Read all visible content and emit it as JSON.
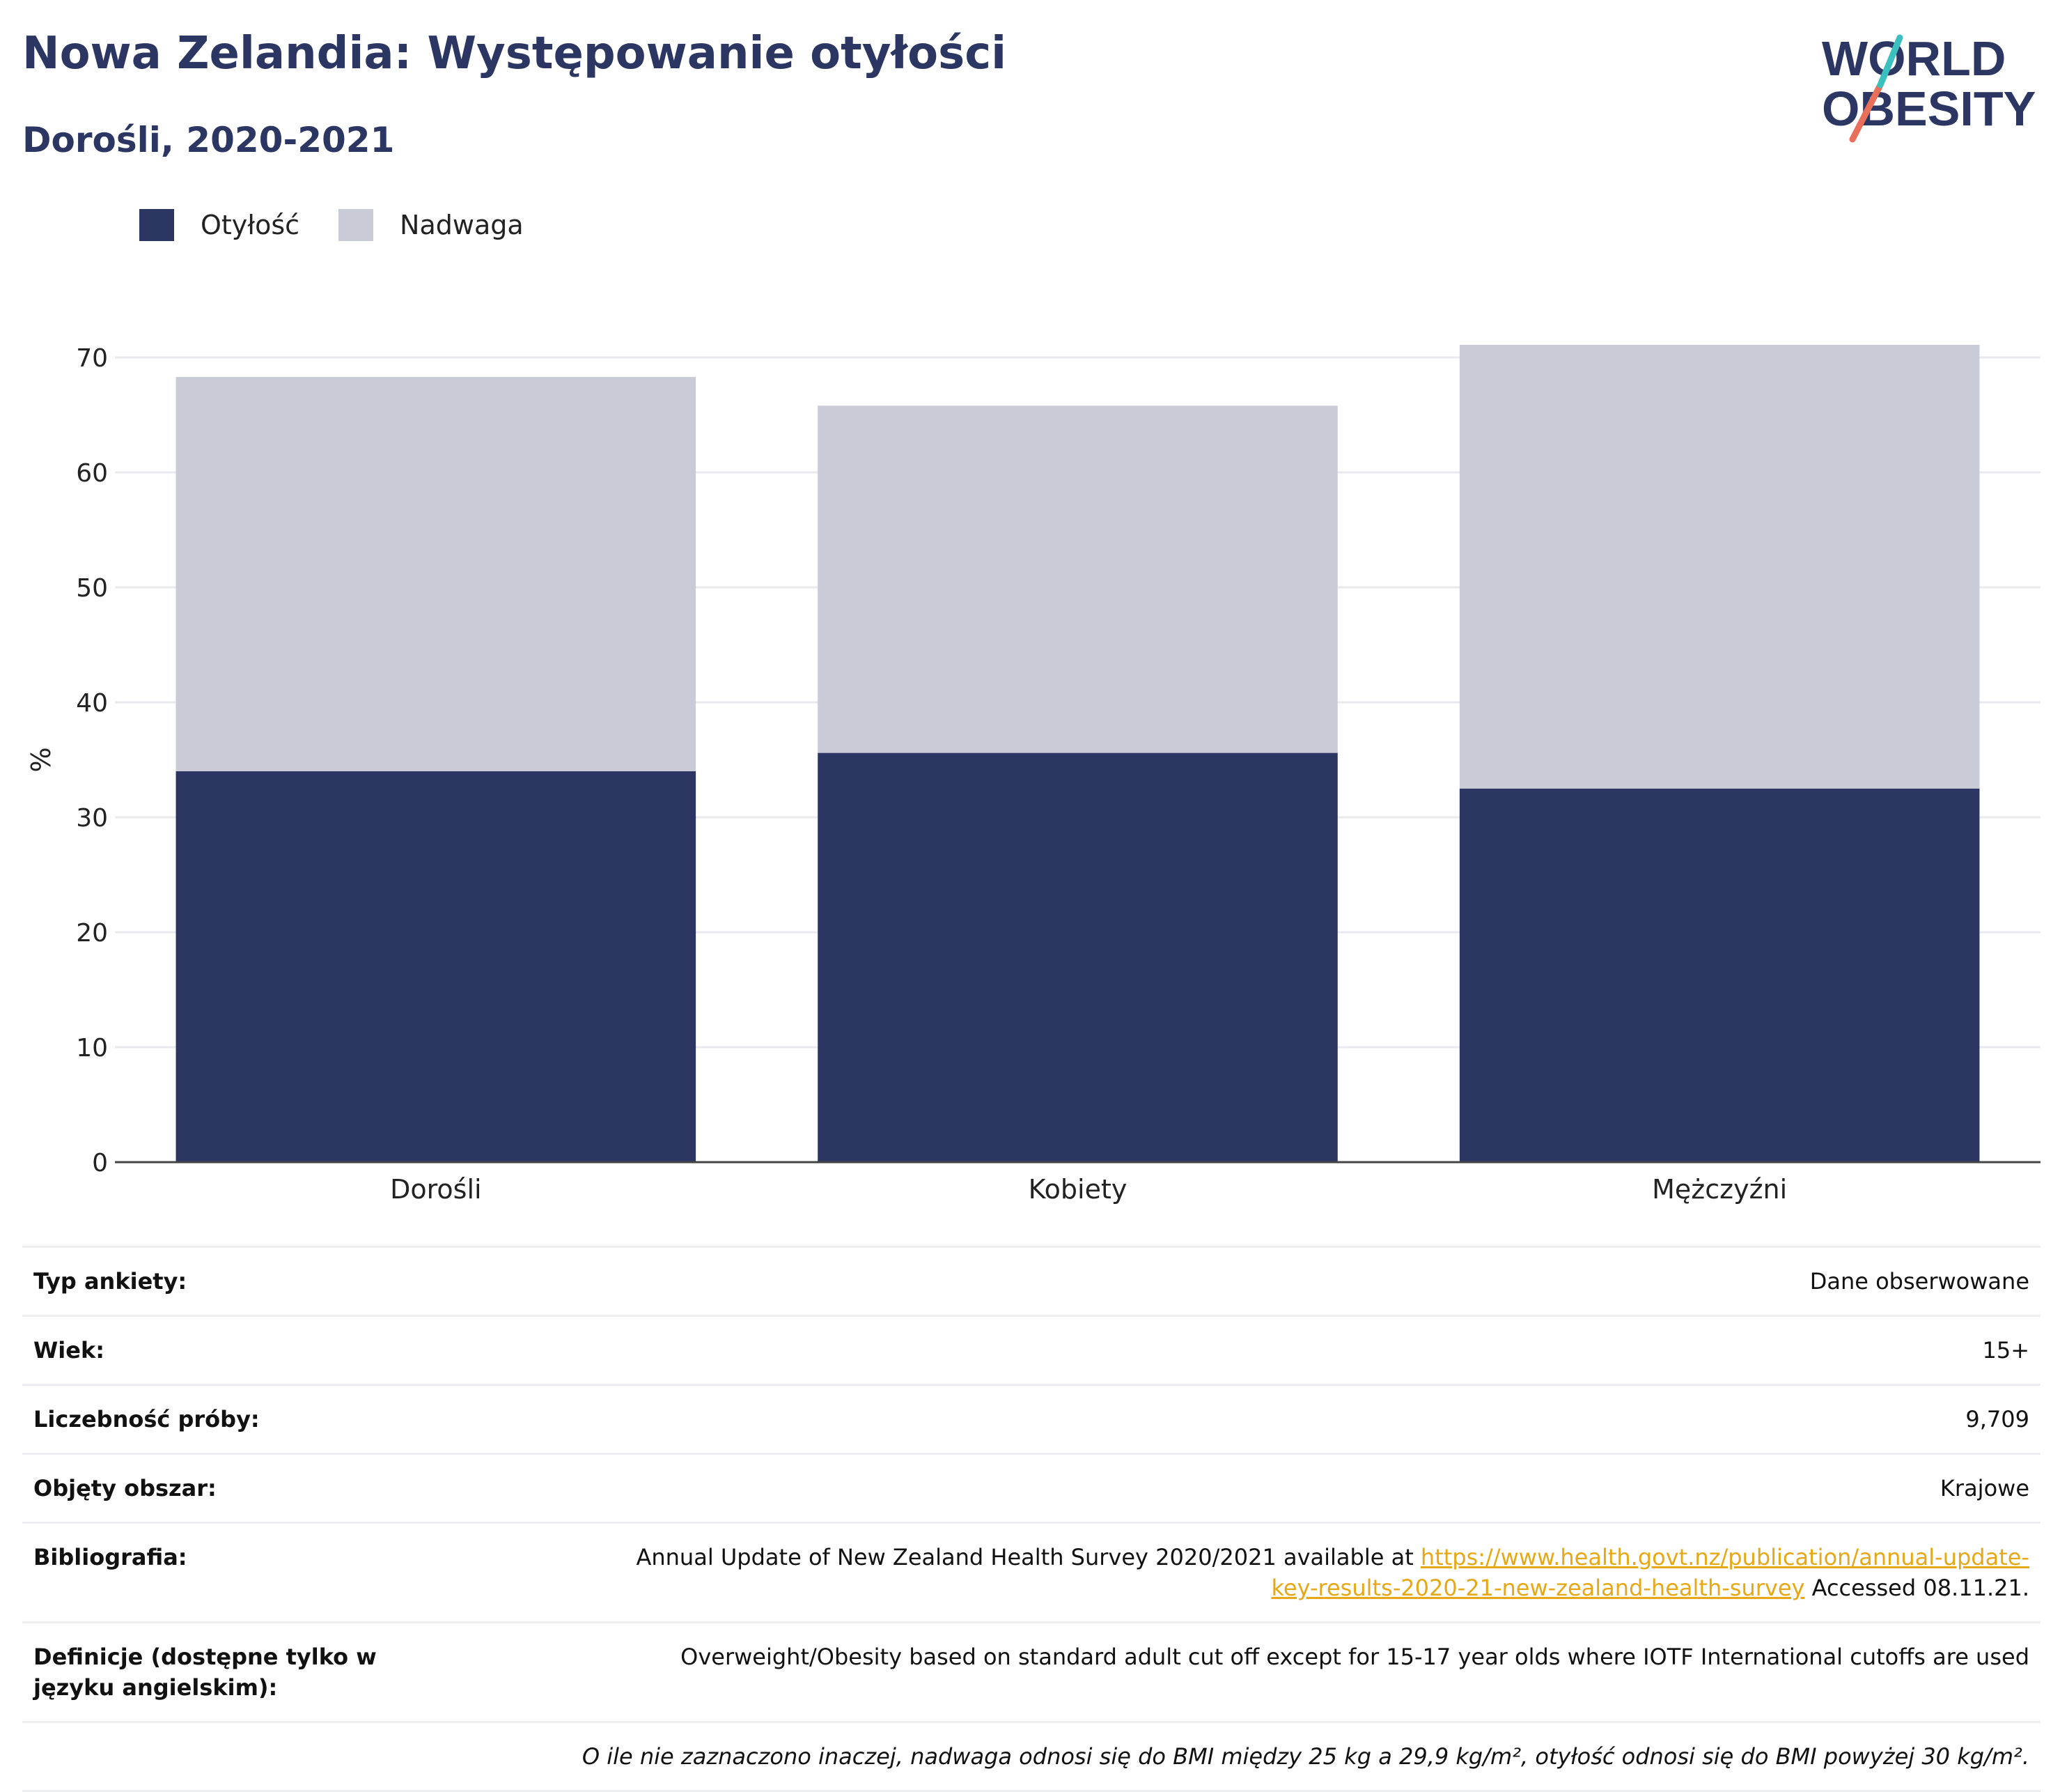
{
  "header": {
    "title": "Nowa Zelandia: Występowanie otyłości",
    "subtitle": "Dorośli, 2020-2021"
  },
  "logo": {
    "line1": "WORLD",
    "line2": "OBESITY"
  },
  "legend": [
    {
      "label": "Otyłość",
      "color": "#2b3662"
    },
    {
      "label": "Nadwaga",
      "color": "#c9cbd6"
    }
  ],
  "chart_data": {
    "type": "bar",
    "stacked": true,
    "categories": [
      "Dorośli",
      "Kobiety",
      "Mężczyźni"
    ],
    "series": [
      {
        "name": "Otyłość",
        "color": "#2b3662",
        "values": [
          34.0,
          35.6,
          32.5
        ]
      },
      {
        "name": "Nadwaga",
        "color": "#c9cbd6",
        "values": [
          34.3,
          30.2,
          38.6
        ]
      }
    ],
    "ylabel": "%",
    "ylim": [
      0,
      72
    ],
    "yticks": [
      0,
      10,
      20,
      30,
      40,
      50,
      60,
      70
    ],
    "grid": true,
    "legend_position": "top-left"
  },
  "meta": {
    "survey_type_label": "Typ ankiety:",
    "survey_type_value": "Dane obserwowane",
    "age_label": "Wiek:",
    "age_value": "15+",
    "sample_label": "Liczebność próby:",
    "sample_value": "9,709",
    "area_label": "Objęty obszar:",
    "area_value": "Krajowe",
    "biblio_label": "Bibliografia:",
    "biblio_text": "Annual Update of New Zealand Health Survey 2020/2021 available at ",
    "biblio_link": "https://www.health.govt.nz/publication/annual-update-key-results-2020-21-new-zealand-health-survey",
    "biblio_suffix": " Accessed 08.11.21.",
    "defs_label": "Definicje (dostępne tylko w języku angielskim):",
    "defs_value": "Overweight/Obesity based on standard adult cut off except for 15-17 year olds where IOTF International cutoffs are used",
    "note": "O ile nie zaznaczono inaczej, nadwaga odnosi się do BMI między 25 kg a 29,9 kg/m², otyłość odnosi się do BMI powyżej 30 kg/m²."
  }
}
